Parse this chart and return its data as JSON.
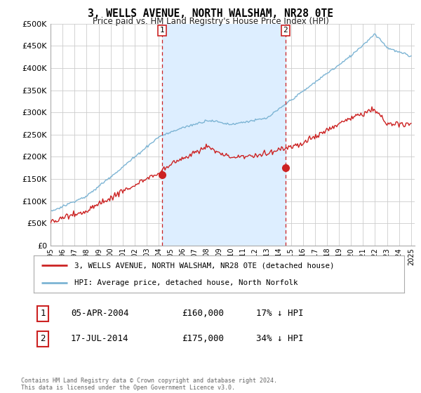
{
  "title": "3, WELLS AVENUE, NORTH WALSHAM, NR28 0TE",
  "subtitle": "Price paid vs. HM Land Registry's House Price Index (HPI)",
  "ylim": [
    0,
    500000
  ],
  "yticks": [
    0,
    50000,
    100000,
    150000,
    200000,
    250000,
    300000,
    350000,
    400000,
    450000,
    500000
  ],
  "ytick_labels": [
    "£0",
    "£50K",
    "£100K",
    "£150K",
    "£200K",
    "£250K",
    "£300K",
    "£350K",
    "£400K",
    "£450K",
    "£500K"
  ],
  "hpi_color": "#7cb4d4",
  "price_color": "#cc2222",
  "shade_color": "#ddeeff",
  "dashed_color": "#cc2222",
  "background_color": "#ffffff",
  "grid_color": "#cccccc",
  "legend_label_price": "3, WELLS AVENUE, NORTH WALSHAM, NR28 0TE (detached house)",
  "legend_label_hpi": "HPI: Average price, detached house, North Norfolk",
  "sale1_date": "05-APR-2004",
  "sale1_price": "£160,000",
  "sale1_note": "17% ↓ HPI",
  "sale2_date": "17-JUL-2014",
  "sale2_price": "£175,000",
  "sale2_note": "34% ↓ HPI",
  "sale1_x": 2004.27,
  "sale1_y": 160000,
  "sale2_x": 2014.54,
  "sale2_y": 175000,
  "xmin": 1995,
  "xmax": 2025.3,
  "footnote": "Contains HM Land Registry data © Crown copyright and database right 2024.\nThis data is licensed under the Open Government Licence v3.0."
}
